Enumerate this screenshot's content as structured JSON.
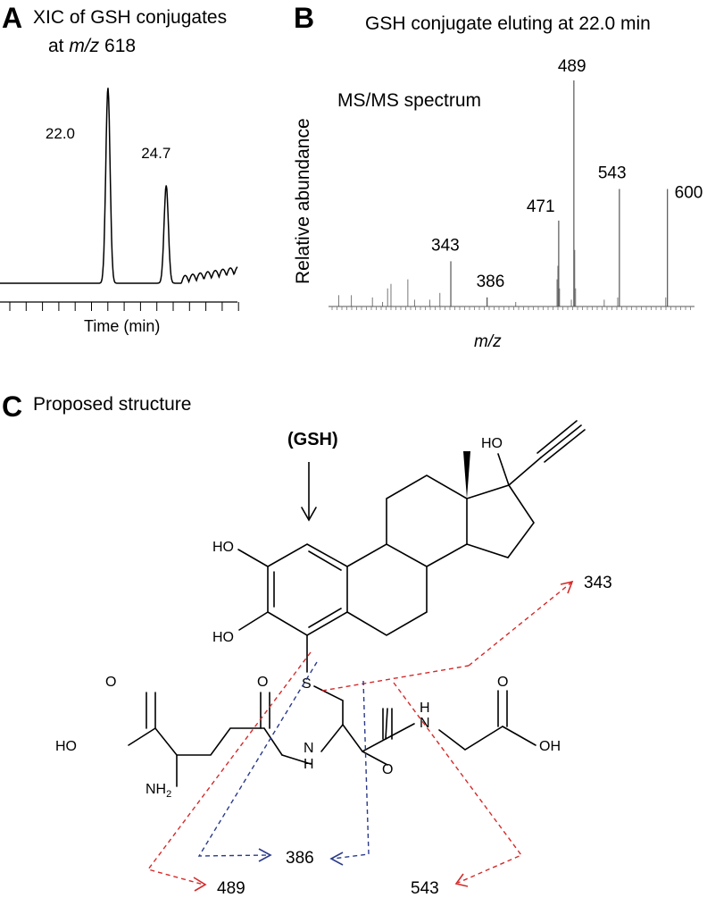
{
  "panels": {
    "a": {
      "letter": "A",
      "title_line1": "XIC of GSH conjugates",
      "title_line2_prefix": "at ",
      "title_line2_italic": "m/z",
      "title_line2_suffix": " 618",
      "xlabel": "Time (min)"
    },
    "b": {
      "letter": "B",
      "title": "GSH conjugate eluting at 22.0 min",
      "inset_label": "MS/MS spectrum",
      "ylabel": "Relative abundance",
      "xlabel": "m/z"
    },
    "c": {
      "letter": "C",
      "title": "Proposed structure",
      "gsh_label": "(GSH)",
      "atoms": {
        "ho_top": "HO",
        "ho_left1": "HO",
        "ho_left2": "HO",
        "s": "S",
        "o1": "O",
        "ho_acid": "HO",
        "nh2_n": "NH",
        "nh2_sub": "2",
        "o2": "O",
        "nh1_n": "N",
        "nh1_h": "H",
        "o3": "O",
        "nh2b_h": "H",
        "nh2b_n": "N",
        "o4": "O",
        "oh_right": "OH"
      },
      "fragments": [
        "343",
        "386",
        "489",
        "543"
      ]
    }
  },
  "chart_data": [
    {
      "type": "line",
      "panel": "A",
      "title": "XIC of GSH conjugates at m/z 618",
      "xlabel": "Time (min)",
      "ylabel": "",
      "peaks": [
        {
          "label": "22.0",
          "x": 22.0,
          "relative_height": 1.0
        },
        {
          "label": "24.7",
          "x": 24.7,
          "relative_height": 0.5
        }
      ],
      "grid": false
    },
    {
      "type": "bar",
      "panel": "B",
      "title": "GSH conjugate eluting at 22.0 min",
      "xlabel": "m/z",
      "ylabel": "Relative abundance",
      "labeled_peaks": [
        {
          "mz": 343,
          "label": "343",
          "value": 20
        },
        {
          "mz": 386,
          "label": "386",
          "value": 4
        },
        {
          "mz": 471,
          "label": "471",
          "value": 38
        },
        {
          "mz": 489,
          "label": "489",
          "value": 100
        },
        {
          "mz": 543,
          "label": "543",
          "value": 52
        },
        {
          "mz": 600,
          "label": "600",
          "value": 52
        }
      ],
      "minor_peaks": [
        {
          "mz": 210,
          "value": 5
        },
        {
          "mz": 225,
          "value": 5
        },
        {
          "mz": 250,
          "value": 4
        },
        {
          "mz": 262,
          "value": 2
        },
        {
          "mz": 268,
          "value": 8
        },
        {
          "mz": 272,
          "value": 10
        },
        {
          "mz": 292,
          "value": 12
        },
        {
          "mz": 300,
          "value": 3
        },
        {
          "mz": 318,
          "value": 3
        },
        {
          "mz": 330,
          "value": 6
        },
        {
          "mz": 386,
          "value": 4
        },
        {
          "mz": 420,
          "value": 2
        },
        {
          "mz": 469,
          "value": 12
        },
        {
          "mz": 470,
          "value": 18
        },
        {
          "mz": 472,
          "value": 8
        },
        {
          "mz": 486,
          "value": 3
        },
        {
          "mz": 490,
          "value": 25
        },
        {
          "mz": 491,
          "value": 8
        },
        {
          "mz": 525,
          "value": 3
        },
        {
          "mz": 541,
          "value": 4
        },
        {
          "mz": 598,
          "value": 4
        }
      ],
      "xlim": [
        200,
        630
      ],
      "ylim": [
        0,
        100
      ]
    }
  ]
}
